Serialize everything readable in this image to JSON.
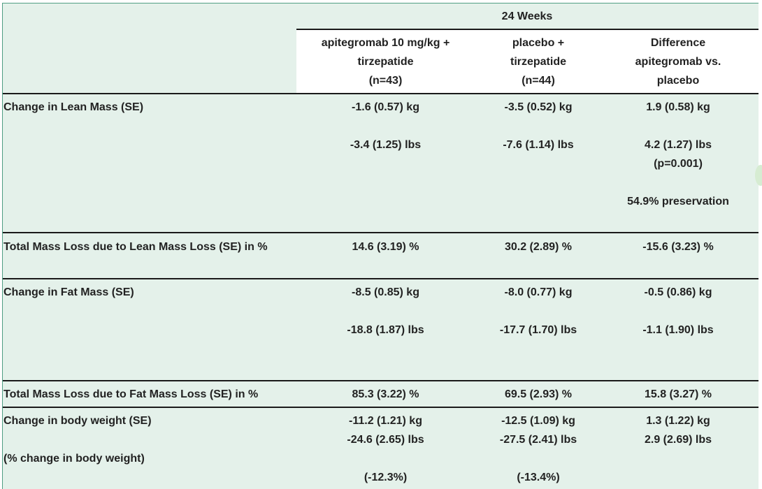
{
  "table": {
    "period": "24 Weeks",
    "columns": [
      {
        "lines": [
          "apitegromab 10 mg/kg +",
          "tirzepatide",
          "(n=43)"
        ]
      },
      {
        "lines": [
          "placebo +",
          "tirzepatide",
          "(n=44)"
        ]
      },
      {
        "lines": [
          "Difference",
          "apitegromab vs.",
          "placebo"
        ]
      }
    ],
    "rows": [
      {
        "label": "Change in Lean Mass (SE)",
        "c1": [
          "-1.6 (0.57) kg",
          "",
          "-3.4 (1.25) lbs"
        ],
        "c2": [
          "-3.5 (0.52) kg",
          "",
          "-7.6 (1.14) lbs"
        ],
        "c3": [
          "1.9 (0.58) kg",
          "",
          "4.2 (1.27) lbs",
          "(p=0.001)",
          "",
          "54.9% preservation"
        ]
      },
      {
        "label": "Total Mass Loss due to Lean Mass Loss (SE) in %",
        "c1": [
          "14.6 (3.19) %"
        ],
        "c2": [
          "30.2 (2.89) %"
        ],
        "c3": [
          "-15.6 (3.23) %"
        ]
      },
      {
        "label": "Change in Fat Mass (SE)",
        "c1": [
          "-8.5 (0.85) kg",
          "",
          "-18.8 (1.87) lbs"
        ],
        "c2": [
          "-8.0 (0.77) kg",
          "",
          "-17.7 (1.70) lbs"
        ],
        "c3": [
          "-0.5 (0.86) kg",
          "",
          "-1.1 (1.90) lbs"
        ]
      },
      {
        "label": "Total Mass Loss due to Fat Mass Loss (SE) in %",
        "c1": [
          "85.3 (3.22) %"
        ],
        "c2": [
          "69.5 (2.93) %"
        ],
        "c3": [
          "15.8 (3.27) %"
        ]
      },
      {
        "label": "Change in body weight (SE)",
        "label2": "(% change in body weight)",
        "c1": [
          "-11.2 (1.21) kg",
          "-24.6 (2.65) lbs",
          "",
          "(-12.3%)"
        ],
        "c2": [
          "-12.5 (1.09) kg",
          "-27.5 (2.41) lbs",
          "",
          "(-13.4%)"
        ],
        "c3": [
          "1.3 (1.22) kg",
          "2.9 (2.69) lbs"
        ]
      }
    ]
  }
}
